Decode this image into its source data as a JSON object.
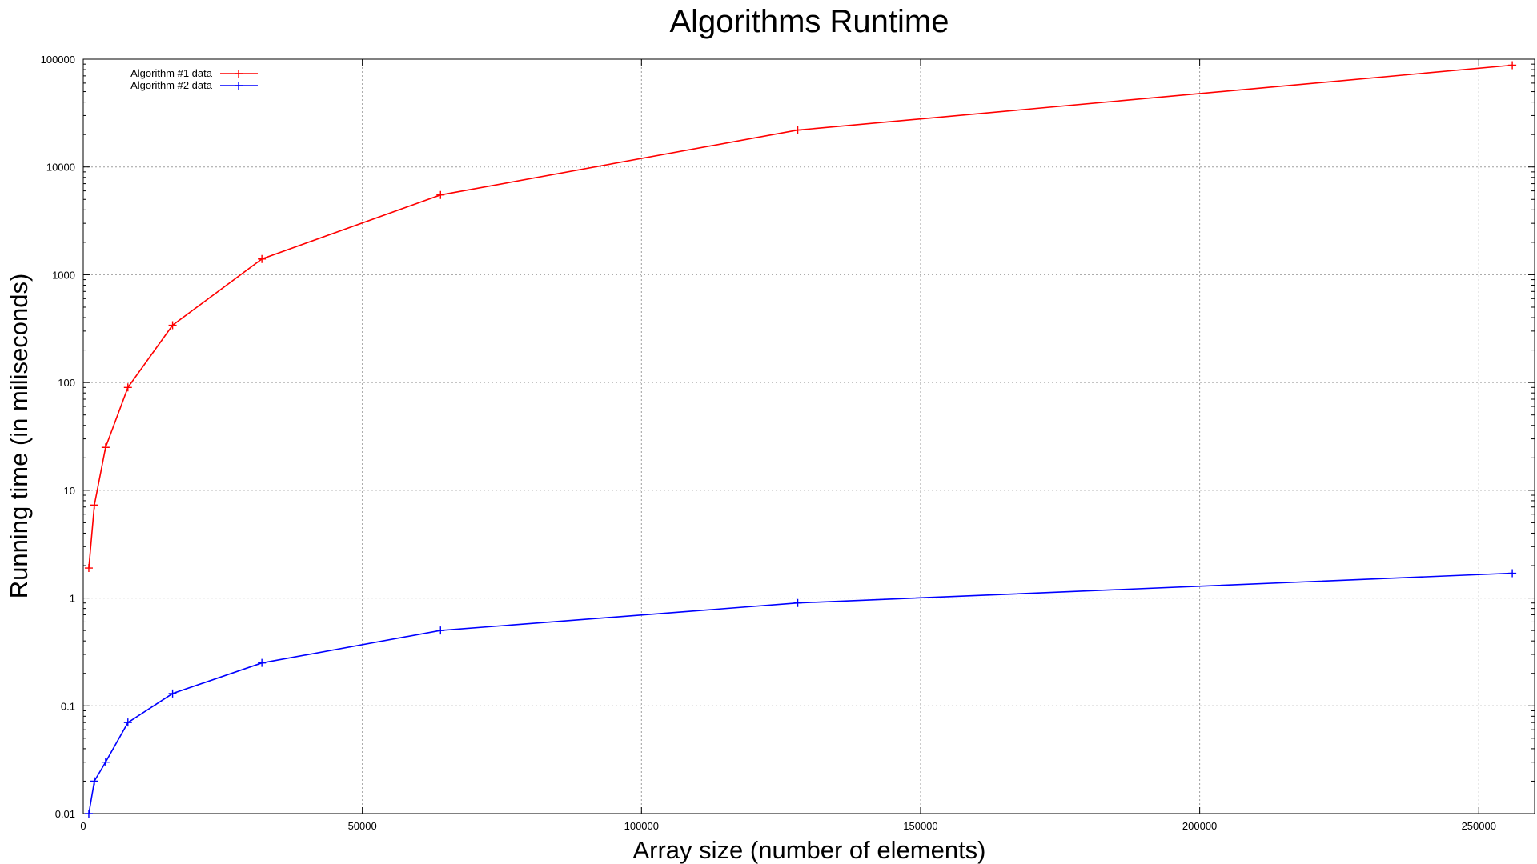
{
  "chart_data": {
    "type": "line",
    "title": "Algorithms Runtime",
    "xlabel": "Array size (number of elements)",
    "ylabel": "Running time (in miliseconds)",
    "xlim": [
      0,
      260000
    ],
    "ylim": [
      0.01,
      100000
    ],
    "yscale": "log",
    "grid": true,
    "legend_position": "top-left",
    "x_ticks": [
      "0",
      "50000",
      "100000",
      "150000",
      "200000",
      "250000"
    ],
    "y_ticks": [
      "0.01",
      "0.1",
      "1",
      "10",
      "100",
      "1000",
      "10000",
      "100000"
    ],
    "x": [
      1000,
      2000,
      4000,
      8000,
      16000,
      32000,
      64000,
      128000,
      256000
    ],
    "series": [
      {
        "name": "Algorithm #1 data",
        "color": "#ff0000",
        "values": [
          1.9,
          7.3,
          25,
          90,
          340,
          1400,
          5500,
          22000,
          88000
        ]
      },
      {
        "name": "Algorithm #2 data",
        "color": "#0000ff",
        "values": [
          0.01,
          0.02,
          0.03,
          0.07,
          0.13,
          0.25,
          0.5,
          0.9,
          1.7
        ]
      }
    ]
  }
}
